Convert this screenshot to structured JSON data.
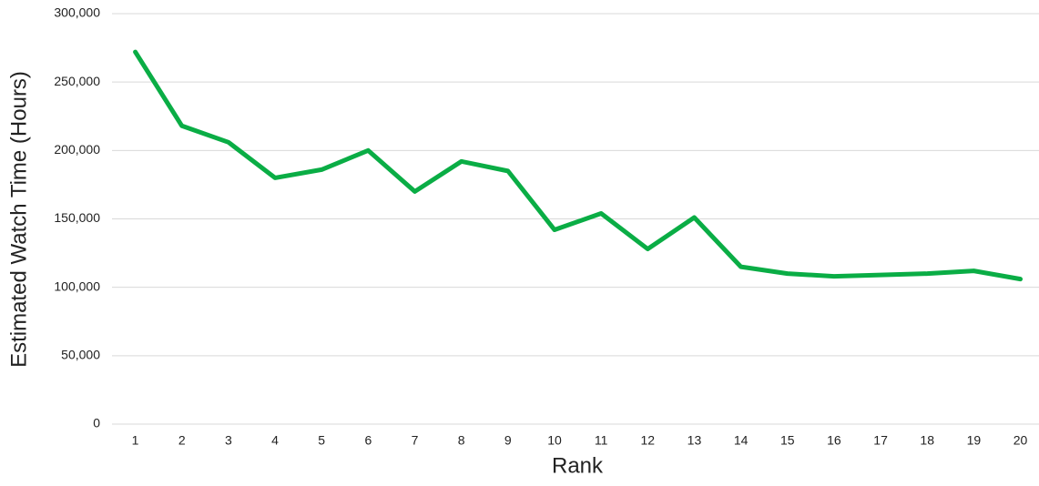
{
  "chart_data": {
    "type": "line",
    "x_label": "Rank",
    "y_label": "Estimated Watch Time (Hours)",
    "x": [
      1,
      2,
      3,
      4,
      5,
      6,
      7,
      8,
      9,
      10,
      11,
      12,
      13,
      14,
      15,
      16,
      17,
      18,
      19,
      20
    ],
    "series": [
      {
        "color": "#0aad45",
        "values": [
          272000,
          218000,
          206000,
          180000,
          186000,
          200000,
          170000,
          192000,
          185000,
          142000,
          154000,
          128000,
          151000,
          115000,
          110000,
          108000,
          109000,
          110000,
          112000,
          106000
        ]
      }
    ],
    "xlim": [
      0.5,
      20.4
    ],
    "xticks": [
      1,
      2,
      3,
      4,
      5,
      6,
      7,
      8,
      9,
      10,
      11,
      12,
      13,
      14,
      15,
      16,
      17,
      18,
      19,
      20
    ],
    "ylim": [
      0,
      300000
    ],
    "yticks": [
      0,
      {
        "value": 50000,
        "label": "50,000"
      },
      {
        "value": 100000,
        "label": "100,000"
      },
      {
        "value": 150000,
        "label": "150,000"
      },
      {
        "value": 200000,
        "label": "200,000"
      },
      {
        "value": 250000,
        "label": "250,000"
      },
      {
        "value": 300000,
        "label": "300,000"
      }
    ],
    "grid": true
  }
}
